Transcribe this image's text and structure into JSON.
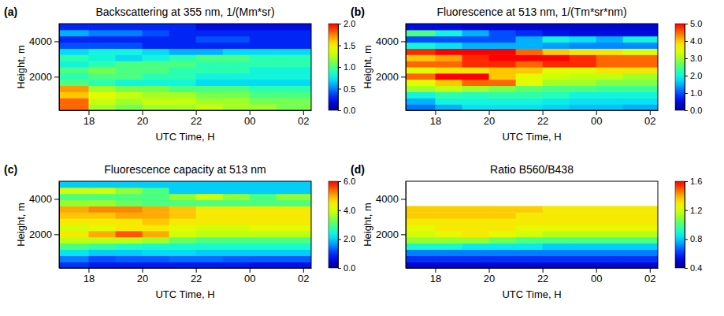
{
  "chart_data": [
    {
      "type": "heatmap",
      "title": "Backscattering at 355 nm, 1/(Mm*sr)",
      "panel_label": "(a)",
      "x_label": "UTC Time, H",
      "y_label": "Height, m",
      "xlim": [
        16.9,
        26.3
      ],
      "xticks": [
        18,
        20,
        22,
        {
          "value": 24,
          "label": "00"
        },
        {
          "value": 26,
          "label": "02"
        }
      ],
      "ylim": [
        100,
        5000
      ],
      "yticks": [
        2000,
        4000
      ],
      "x_bins": [
        16.9,
        18,
        19,
        20,
        21,
        22,
        23,
        24,
        25,
        26.3
      ],
      "y_bins": [
        100,
        450,
        800,
        1150,
        1500,
        1850,
        2200,
        2550,
        2900,
        3250,
        3600,
        3950,
        4300,
        4650,
        5000
      ],
      "values": [
        [
          1.8,
          1.2,
          1.1,
          1.2,
          1.2,
          1.3,
          1.2,
          1.2,
          1.1
        ],
        [
          1.8,
          1.3,
          1.2,
          1.3,
          1.3,
          1.2,
          1.2,
          1.1,
          1.1
        ],
        [
          1.6,
          1.4,
          1.3,
          1.2,
          1.2,
          1.1,
          1.1,
          1.0,
          1.0
        ],
        [
          1.7,
          1.2,
          1.1,
          1.1,
          1.0,
          1.0,
          1.0,
          0.9,
          0.9
        ],
        [
          1.0,
          0.9,
          0.8,
          0.8,
          0.8,
          0.7,
          0.7,
          0.7,
          0.7
        ],
        [
          0.9,
          1.0,
          1.0,
          0.9,
          0.9,
          0.8,
          0.8,
          0.8,
          0.8
        ],
        [
          1.0,
          1.1,
          1.0,
          1.0,
          0.9,
          0.9,
          0.9,
          0.8,
          0.8
        ],
        [
          0.8,
          0.9,
          1.0,
          1.0,
          1.0,
          0.9,
          0.9,
          0.9,
          0.9
        ],
        [
          0.9,
          0.8,
          0.7,
          0.8,
          0.9,
          1.0,
          1.0,
          0.9,
          0.9
        ],
        [
          0.7,
          0.8,
          0.8,
          0.7,
          0.6,
          0.6,
          0.7,
          0.7,
          0.7
        ],
        [
          0.4,
          0.4,
          0.4,
          0.3,
          0.3,
          0.3,
          0.3,
          0.3,
          0.3
        ],
        [
          0.3,
          0.3,
          0.3,
          0.3,
          0.3,
          0.4,
          0.4,
          0.3,
          0.3
        ],
        [
          0.6,
          0.5,
          0.5,
          0.4,
          0.3,
          0.3,
          0.3,
          0.3,
          0.3
        ],
        [
          0.3,
          0.3,
          0.3,
          0.3,
          0.3,
          0.2,
          0.2,
          0.2,
          0.2
        ]
      ],
      "color_range": [
        0,
        2
      ],
      "color_ticks": [
        {
          "value": 0,
          "label": "0.0"
        },
        0.5,
        {
          "value": 1,
          "label": "1.0"
        },
        1.5,
        {
          "value": 2,
          "label": "2.0"
        }
      ]
    },
    {
      "type": "heatmap",
      "title": "Fluorescence at 513 nm, 1/(Tm*sr*nm)",
      "panel_label": "(b)",
      "x_label": "UTC Time, H",
      "y_label": "Height, m",
      "xlim": [
        16.9,
        26.3
      ],
      "xticks": [
        18,
        20,
        22,
        {
          "value": 24,
          "label": "00"
        },
        {
          "value": 26,
          "label": "02"
        }
      ],
      "ylim": [
        100,
        5000
      ],
      "yticks": [
        2000,
        4000
      ],
      "x_bins": [
        16.9,
        18,
        19,
        20,
        21,
        22,
        23,
        24,
        25,
        26.3
      ],
      "y_bins": [
        100,
        450,
        800,
        1150,
        1500,
        1850,
        2200,
        2550,
        2900,
        3250,
        3600,
        3950,
        4300,
        4650,
        5000
      ],
      "values": [
        [
          1.2,
          1.5,
          1.8,
          1.8,
          1.8,
          1.7,
          1.6,
          1.6,
          1.5
        ],
        [
          1.5,
          2.0,
          2.0,
          2.0,
          2.0,
          1.9,
          1.8,
          1.8,
          1.8
        ],
        [
          2.0,
          2.3,
          2.2,
          2.3,
          2.3,
          2.2,
          2.0,
          2.0,
          2.0
        ],
        [
          3.0,
          3.2,
          3.0,
          2.8,
          2.6,
          2.5,
          2.5,
          2.4,
          2.4
        ],
        [
          3.5,
          4.0,
          4.5,
          4.5,
          3.5,
          3.0,
          3.0,
          2.8,
          2.8
        ],
        [
          4.5,
          5.0,
          5.0,
          4.0,
          3.5,
          3.3,
          3.2,
          3.2,
          3.0
        ],
        [
          3.5,
          3.8,
          3.8,
          4.0,
          4.0,
          3.5,
          3.5,
          3.8,
          3.8
        ],
        [
          4.5,
          4.5,
          4.8,
          4.8,
          4.5,
          4.8,
          4.8,
          4.5,
          4.5
        ],
        [
          4.0,
          4.2,
          4.8,
          5.0,
          5.0,
          5.0,
          4.8,
          4.5,
          4.5
        ],
        [
          4.8,
          5.0,
          5.0,
          5.0,
          4.5,
          4.0,
          3.8,
          3.8,
          3.5
        ],
        [
          2.0,
          1.8,
          1.5,
          1.5,
          1.5,
          1.4,
          1.3,
          1.3,
          1.3
        ],
        [
          1.0,
          1.0,
          1.0,
          1.0,
          1.5,
          2.0,
          1.8,
          1.5,
          2.0
        ],
        [
          2.5,
          2.0,
          1.5,
          1.0,
          0.8,
          0.6,
          0.5,
          0.5,
          0.5
        ],
        [
          0.5,
          0.5,
          0.4,
          0.4,
          0.4,
          0.4,
          0.4,
          0.4,
          0.4
        ]
      ],
      "color_range": [
        0,
        5
      ],
      "color_ticks": [
        {
          "value": 0,
          "label": "0.0"
        },
        {
          "value": 1,
          "label": "1.0"
        },
        {
          "value": 2,
          "label": "2.0"
        },
        {
          "value": 3,
          "label": "3.0"
        },
        {
          "value": 4,
          "label": "4.0"
        },
        {
          "value": 5,
          "label": "5.0"
        }
      ]
    },
    {
      "type": "heatmap",
      "title": "Fluorescence capacity at 513 nm",
      "panel_label": "(c)",
      "x_label": "UTC Time, H",
      "y_label": "Height, m",
      "xlim": [
        16.9,
        26.3
      ],
      "xticks": [
        18,
        20,
        22,
        {
          "value": 24,
          "label": "00"
        },
        {
          "value": 26,
          "label": "02"
        }
      ],
      "ylim": [
        100,
        5000
      ],
      "yticks": [
        2000,
        4000
      ],
      "x_bins": [
        16.9,
        18,
        19,
        20,
        21,
        22,
        23,
        24,
        25,
        26.3
      ],
      "y_bins": [
        100,
        450,
        800,
        1150,
        1500,
        1850,
        2200,
        2550,
        2900,
        3250,
        3600,
        3950,
        4300,
        4650,
        5000
      ],
      "values": [
        [
          1.0,
          0.8,
          0.8,
          0.8,
          0.8,
          0.8,
          0.8,
          0.7,
          0.7
        ],
        [
          1.5,
          1.2,
          1.3,
          1.3,
          1.4,
          1.4,
          1.3,
          1.3,
          1.3
        ],
        [
          2.2,
          2.0,
          2.0,
          2.1,
          2.1,
          2.0,
          2.0,
          2.0,
          2.0
        ],
        [
          3.0,
          2.8,
          2.6,
          2.5,
          2.5,
          2.5,
          2.5,
          2.5,
          2.5
        ],
        [
          3.8,
          3.8,
          3.8,
          3.6,
          3.2,
          3.0,
          3.0,
          3.0,
          3.0
        ],
        [
          4.5,
          5.0,
          5.5,
          5.0,
          4.0,
          3.8,
          3.8,
          3.8,
          3.8
        ],
        [
          4.0,
          4.2,
          4.5,
          4.5,
          4.2,
          4.0,
          4.0,
          4.2,
          4.2
        ],
        [
          4.5,
          4.5,
          4.5,
          4.8,
          4.5,
          4.5,
          4.5,
          4.5,
          4.5
        ],
        [
          4.8,
          4.8,
          5.0,
          5.0,
          4.8,
          4.5,
          4.5,
          4.5,
          4.5
        ],
        [
          5.0,
          5.2,
          5.2,
          5.0,
          4.8,
          4.5,
          4.5,
          4.5,
          4.5
        ],
        [
          3.5,
          3.5,
          3.2,
          3.0,
          3.0,
          3.0,
          3.0,
          3.0,
          3.0
        ],
        [
          3.0,
          3.0,
          3.0,
          3.0,
          3.5,
          4.0,
          3.5,
          3.0,
          3.5
        ],
        [
          4.0,
          4.0,
          3.5,
          3.0,
          2.0,
          2.0,
          2.0,
          2.0,
          2.0
        ],
        [
          2.0,
          2.0,
          2.0,
          2.0,
          2.0,
          2.0,
          2.0,
          2.0,
          2.0
        ]
      ],
      "color_range": [
        0,
        6
      ],
      "color_ticks": [
        {
          "value": 0,
          "label": "0.0"
        },
        {
          "value": 2,
          "label": "2.0"
        },
        {
          "value": 4,
          "label": "4.0"
        },
        {
          "value": 6,
          "label": "6.0"
        }
      ]
    },
    {
      "type": "heatmap",
      "title": "Ratio B560/B438",
      "panel_label": "(d)",
      "x_label": "UTC Time, H",
      "y_label": "Height, m",
      "xlim": [
        16.9,
        26.3
      ],
      "xticks": [
        18,
        20,
        22,
        {
          "value": 24,
          "label": "00"
        },
        {
          "value": 26,
          "label": "02"
        }
      ],
      "ylim": [
        100,
        5000
      ],
      "yticks": [
        2000,
        4000
      ],
      "x_bins": [
        16.9,
        18,
        19,
        20,
        21,
        22,
        23,
        24,
        25,
        26.3
      ],
      "y_bins": [
        100,
        450,
        800,
        1150,
        1500,
        1850,
        2200,
        2550,
        2900,
        3250,
        3600,
        3950,
        4300,
        4650,
        5000
      ],
      "values": [
        [
          0.5,
          0.5,
          0.5,
          0.5,
          0.5,
          0.5,
          0.5,
          0.5,
          0.5
        ],
        [
          0.6,
          0.6,
          0.6,
          0.6,
          0.6,
          0.6,
          0.6,
          0.6,
          0.6
        ],
        [
          0.7,
          0.7,
          0.7,
          0.7,
          0.7,
          0.7,
          0.7,
          0.7,
          0.7
        ],
        [
          0.9,
          0.9,
          0.85,
          0.85,
          0.85,
          0.8,
          0.8,
          0.8,
          0.8
        ],
        [
          1.1,
          1.1,
          1.1,
          1.05,
          1.0,
          1.0,
          1.0,
          1.0,
          1.0
        ],
        [
          1.2,
          1.25,
          1.3,
          1.25,
          1.2,
          1.15,
          1.15,
          1.15,
          1.15
        ],
        [
          1.25,
          1.3,
          1.3,
          1.3,
          1.25,
          1.25,
          1.25,
          1.25,
          1.25
        ],
        [
          1.3,
          1.3,
          1.3,
          1.3,
          1.3,
          1.3,
          1.3,
          1.3,
          1.3
        ],
        [
          1.35,
          1.35,
          1.35,
          1.35,
          1.3,
          1.3,
          1.3,
          1.3,
          1.3
        ],
        [
          1.35,
          1.35,
          1.35,
          1.35,
          1.35,
          1.3,
          1.3,
          1.3,
          1.3
        ],
        [
          null,
          null,
          null,
          null,
          null,
          null,
          null,
          null,
          null
        ],
        [
          null,
          null,
          null,
          null,
          null,
          null,
          null,
          null,
          null
        ],
        [
          null,
          null,
          null,
          null,
          null,
          null,
          null,
          null,
          null
        ],
        [
          null,
          null,
          null,
          null,
          null,
          null,
          null,
          null,
          null
        ]
      ],
      "color_range": [
        0.4,
        1.6
      ],
      "color_ticks": [
        0.4,
        0.8,
        1.2,
        1.6
      ]
    }
  ]
}
